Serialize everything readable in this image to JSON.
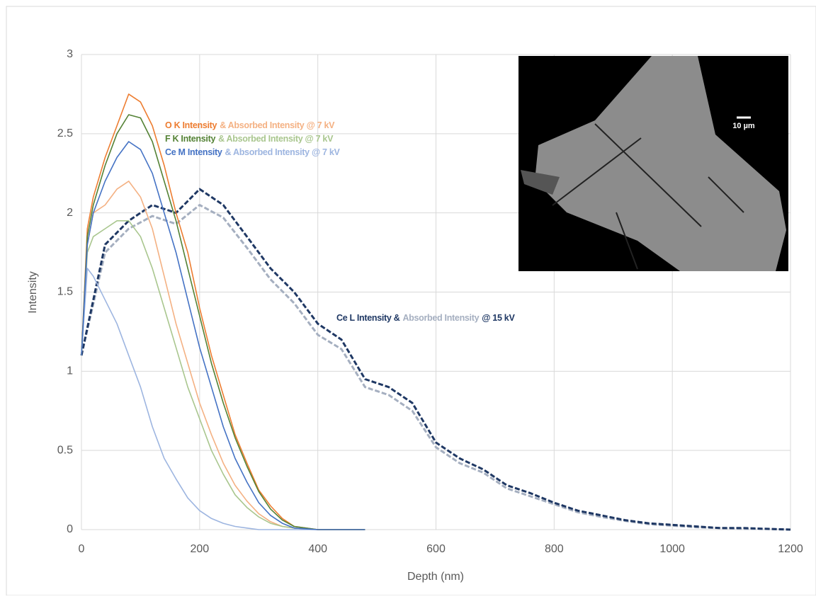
{
  "chart_data": {
    "type": "line",
    "xlabel": "Depth (nm)",
    "ylabel": "Intensity",
    "xlim": [
      0,
      1200
    ],
    "xticks": [
      0,
      200,
      400,
      600,
      800,
      1000,
      1200
    ],
    "ylim": [
      0,
      3
    ],
    "yticks": [
      0,
      0.5,
      1,
      1.5,
      2,
      2.5,
      3
    ],
    "grid": true,
    "series": [
      {
        "color": "#a5afc0",
        "dashed": true,
        "x": [
          0,
          40,
          80,
          120,
          160,
          200,
          240,
          280,
          320,
          360,
          400,
          440,
          480,
          520,
          560,
          600,
          640,
          680,
          720,
          760,
          800,
          840,
          880,
          920,
          960,
          1000,
          1040,
          1080,
          1120,
          1160,
          1200
        ],
        "values": [
          1.1,
          1.75,
          1.9,
          1.98,
          1.93,
          2.05,
          1.97,
          1.78,
          1.58,
          1.43,
          1.23,
          1.14,
          0.9,
          0.85,
          0.75,
          0.52,
          0.42,
          0.36,
          0.26,
          0.21,
          0.16,
          0.11,
          0.08,
          0.055,
          0.035,
          0.025,
          0.015,
          0.01,
          0.005,
          0.004,
          0
        ]
      },
      {
        "color": "#1f3864",
        "dashed": true,
        "x": [
          0,
          40,
          80,
          120,
          160,
          200,
          240,
          280,
          320,
          360,
          400,
          440,
          480,
          520,
          560,
          600,
          640,
          680,
          720,
          760,
          800,
          840,
          880,
          920,
          960,
          1000,
          1040,
          1080,
          1120,
          1160,
          1200
        ],
        "values": [
          1.1,
          1.8,
          1.95,
          2.05,
          2.0,
          2.15,
          2.05,
          1.85,
          1.65,
          1.5,
          1.3,
          1.2,
          0.95,
          0.9,
          0.8,
          0.55,
          0.45,
          0.38,
          0.28,
          0.23,
          0.17,
          0.12,
          0.09,
          0.06,
          0.04,
          0.03,
          0.02,
          0.01,
          0.01,
          0.005,
          0
        ]
      },
      {
        "color": "#f4b183",
        "dashed": false,
        "x": [
          0,
          10,
          20,
          40,
          60,
          80,
          100,
          120,
          140,
          160,
          180,
          200,
          220,
          240,
          260,
          280,
          300,
          320,
          340,
          360,
          400,
          480
        ],
        "values": [
          1.1,
          1.8,
          2.0,
          2.05,
          2.15,
          2.2,
          2.1,
          1.9,
          1.6,
          1.3,
          1.05,
          0.8,
          0.6,
          0.42,
          0.28,
          0.18,
          0.1,
          0.05,
          0.02,
          0.01,
          0,
          0
        ]
      },
      {
        "color": "#a9c68e",
        "dashed": false,
        "x": [
          0,
          10,
          20,
          40,
          60,
          80,
          100,
          120,
          140,
          160,
          180,
          200,
          220,
          240,
          260,
          280,
          300,
          320,
          340,
          360,
          400,
          480
        ],
        "values": [
          1.1,
          1.75,
          1.85,
          1.9,
          1.95,
          1.95,
          1.85,
          1.65,
          1.4,
          1.15,
          0.9,
          0.7,
          0.5,
          0.35,
          0.22,
          0.14,
          0.08,
          0.04,
          0.02,
          0.01,
          0,
          0
        ]
      },
      {
        "color": "#9db5e0",
        "dashed": false,
        "x": [
          0,
          10,
          20,
          40,
          60,
          80,
          100,
          120,
          140,
          160,
          180,
          200,
          220,
          240,
          260,
          280,
          300,
          320,
          340,
          360,
          400,
          480
        ],
        "values": [
          1.1,
          1.65,
          1.6,
          1.45,
          1.3,
          1.1,
          0.9,
          0.65,
          0.45,
          0.32,
          0.2,
          0.12,
          0.07,
          0.04,
          0.02,
          0.01,
          0,
          0,
          0,
          0,
          0,
          0
        ]
      },
      {
        "color": "#ed7d31",
        "dashed": false,
        "x": [
          0,
          10,
          20,
          40,
          60,
          80,
          100,
          120,
          140,
          160,
          180,
          200,
          220,
          240,
          260,
          280,
          300,
          320,
          340,
          360,
          400,
          480
        ],
        "values": [
          1.1,
          1.9,
          2.1,
          2.35,
          2.55,
          2.75,
          2.7,
          2.55,
          2.3,
          2.0,
          1.75,
          1.4,
          1.1,
          0.85,
          0.6,
          0.42,
          0.25,
          0.15,
          0.07,
          0.02,
          0,
          0
        ]
      },
      {
        "color": "#548235",
        "dashed": false,
        "x": [
          0,
          10,
          20,
          40,
          60,
          80,
          100,
          120,
          140,
          160,
          180,
          200,
          220,
          240,
          260,
          280,
          300,
          320,
          340,
          360,
          400,
          480
        ],
        "values": [
          1.1,
          1.85,
          2.05,
          2.3,
          2.5,
          2.62,
          2.6,
          2.45,
          2.2,
          1.95,
          1.65,
          1.35,
          1.05,
          0.8,
          0.58,
          0.4,
          0.24,
          0.13,
          0.06,
          0.02,
          0,
          0
        ]
      },
      {
        "color": "#4472c4",
        "dashed": false,
        "x": [
          0,
          10,
          20,
          40,
          60,
          80,
          100,
          120,
          140,
          160,
          180,
          200,
          220,
          240,
          260,
          280,
          300,
          320,
          340,
          360,
          400,
          480
        ],
        "values": [
          1.1,
          1.8,
          2.0,
          2.2,
          2.35,
          2.45,
          2.4,
          2.25,
          2.0,
          1.75,
          1.45,
          1.15,
          0.9,
          0.65,
          0.45,
          0.3,
          0.17,
          0.09,
          0.04,
          0.01,
          0,
          0
        ]
      }
    ],
    "annotations": [
      {
        "parts": [
          {
            "text": "O K Intensity",
            "color": "#ed7d31"
          },
          {
            "text": "& Absorbed Intensity @ 7 kV",
            "color": "#f4b183"
          }
        ]
      },
      {
        "parts": [
          {
            "text": "F K Intensity",
            "color": "#548235"
          },
          {
            "text": "& Absorbed Intensity @ 7 kV",
            "color": "#a9c68e"
          }
        ]
      },
      {
        "parts": [
          {
            "text": "Ce M Intensity",
            "color": "#4472c4"
          },
          {
            "text": "& Absorbed Intensity @ 7 kV",
            "color": "#9db5e0"
          }
        ]
      },
      {
        "parts": [
          {
            "text": "Ce L Intensity &",
            "color": "#1f3864"
          },
          {
            "text": "Absorbed Intensity",
            "color": "#a5afc0"
          },
          {
            "text": "@ 15 kV",
            "color": "#1f3864"
          }
        ]
      }
    ],
    "inset_scale_label": "10 µm"
  }
}
